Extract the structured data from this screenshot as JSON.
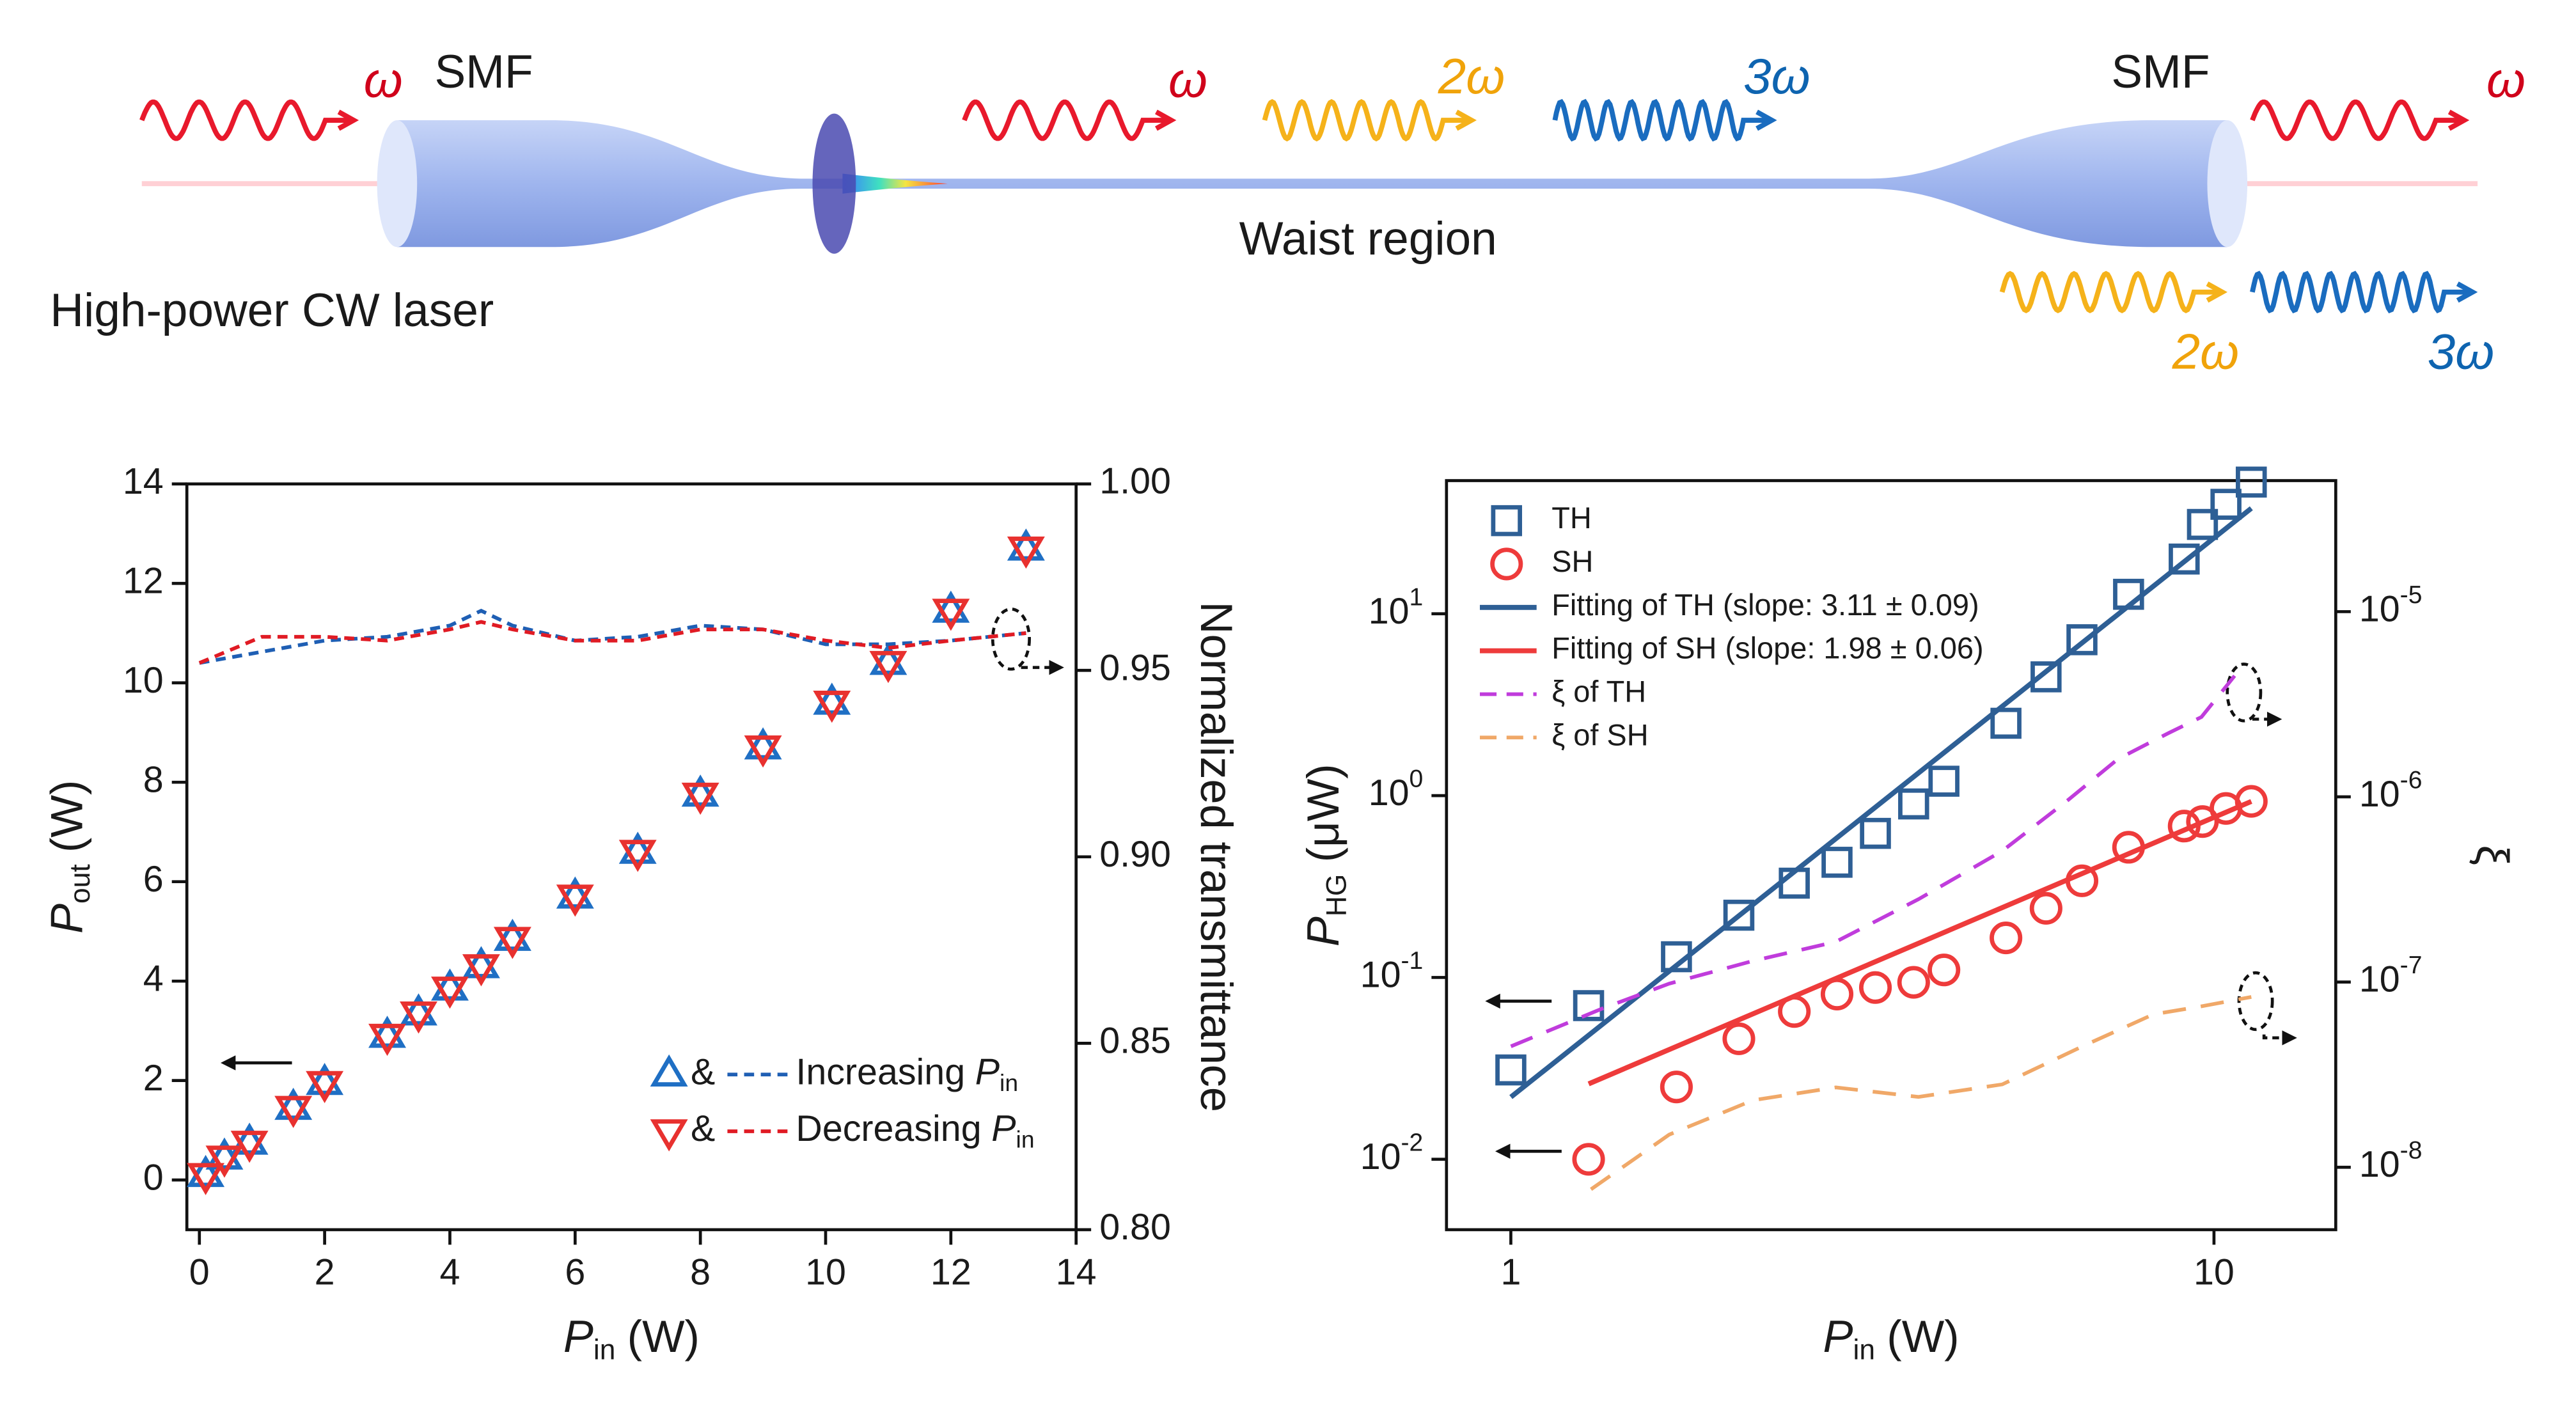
{
  "diagram": {
    "source": "High-power CW laser",
    "left_fiber": "SMF",
    "right_fiber": "SMF",
    "waist": "Waist region",
    "input_wave": "ω",
    "waist_waves": [
      "ω",
      "2ω",
      "3ω"
    ],
    "output_waves": [
      "ω",
      "2ω",
      "3ω"
    ]
  },
  "chart_data": [
    {
      "type": "scatter",
      "xlabel": {
        "symbol": "P",
        "subscript": "in",
        "unit": "(W)"
      },
      "ylabel": {
        "symbol": "P",
        "subscript": "out",
        "unit": "(W)"
      },
      "y2label": "Normalized transmittance",
      "xlim": [
        -0.2,
        14
      ],
      "xticks": [
        0,
        2,
        4,
        6,
        8,
        10,
        12,
        14
      ],
      "ylim": [
        -1,
        14
      ],
      "yticks": [
        0,
        2,
        4,
        6,
        8,
        10,
        12,
        14
      ],
      "y2lim": [
        0.8,
        1.0
      ],
      "y2ticks": [
        {
          "value": 0.8,
          "label": "0.80"
        },
        0.85,
        {
          "value": 0.9,
          "label": "0.90"
        },
        0.95,
        {
          "value": 1.0,
          "label": "1.00"
        }
      ],
      "series": [
        {
          "name": "&",
          "color": "#1f6fc4",
          "marker": "triangle-up",
          "axis": "y",
          "x": [
            0.1,
            0.4,
            0.8,
            1.5,
            2,
            3,
            3.5,
            4,
            4.5,
            5,
            6,
            7,
            8,
            9,
            10.1,
            11,
            12,
            13.2
          ],
          "values": [
            0.1,
            0.45,
            0.75,
            1.45,
            1.95,
            2.9,
            3.35,
            3.85,
            4.3,
            4.85,
            5.7,
            6.6,
            7.75,
            8.7,
            9.6,
            10.4,
            11.45,
            12.7
          ]
        },
        {
          "name": "&",
          "color": "#e8312f",
          "marker": "triangle-down",
          "axis": "y",
          "x": [
            0.1,
            0.4,
            0.8,
            1.5,
            2,
            3,
            3.5,
            4,
            4.5,
            5,
            6,
            7,
            8,
            9,
            10.1,
            11,
            12,
            13.2
          ],
          "values": [
            0.1,
            0.45,
            0.75,
            1.45,
            1.95,
            2.9,
            3.35,
            3.85,
            4.3,
            4.85,
            5.7,
            6.6,
            7.75,
            8.7,
            9.6,
            10.4,
            11.45,
            12.7
          ]
        },
        {
          "name": "Increasing",
          "name_symbol": "P",
          "name_subscript": "in",
          "color": "#1f5fb4",
          "line": "dashed",
          "axis": "y2",
          "x": [
            0,
            1,
            2,
            3,
            4,
            4.5,
            5,
            6,
            7,
            8,
            9,
            10,
            11,
            12,
            13.2
          ],
          "values": [
            0.952,
            0.955,
            0.958,
            0.959,
            0.962,
            0.966,
            0.962,
            0.958,
            0.959,
            0.962,
            0.961,
            0.957,
            0.957,
            0.958,
            0.96
          ]
        },
        {
          "name": "Decreasing",
          "name_symbol": "P",
          "name_subscript": "in",
          "color": "#e01b24",
          "line": "dashed",
          "axis": "y2",
          "x": [
            0,
            1,
            2,
            3,
            4,
            4.5,
            5,
            6,
            7,
            8,
            9,
            10,
            11,
            12,
            13.2
          ],
          "values": [
            0.952,
            0.959,
            0.959,
            0.958,
            0.961,
            0.963,
            0.961,
            0.958,
            0.958,
            0.961,
            0.961,
            0.958,
            0.956,
            0.958,
            0.96
          ]
        }
      ]
    },
    {
      "type": "scatter",
      "xlog": true,
      "ylog": true,
      "y2log": true,
      "xlabel": {
        "symbol": "P",
        "subscript": "in",
        "unit": "(W)"
      },
      "ylabel": {
        "symbol": "P",
        "subscript": "HG",
        "unit": "(μW)"
      },
      "y2label": "ξ",
      "xlim": [
        0.81,
        14.9
      ],
      "xticks": [
        1,
        10
      ],
      "ylim": [
        0.0041,
        54
      ],
      "yticks": [
        {
          "value": 0.01,
          "label": "10",
          "exponent": "-2"
        },
        {
          "value": 0.1,
          "label": "10",
          "exponent": "-1"
        },
        {
          "value": 1,
          "label": "10",
          "exponent": "0"
        },
        {
          "value": 10,
          "label": "10",
          "exponent": "1"
        }
      ],
      "y2lim": [
        4.6e-09,
        5.1e-05
      ],
      "y2ticks": [
        {
          "value": 1e-08,
          "label": "10",
          "exponent": "-8"
        },
        {
          "value": 1e-07,
          "label": "10",
          "exponent": "-7"
        },
        {
          "value": 1e-06,
          "label": "10",
          "exponent": "-6"
        },
        {
          "value": 1e-05,
          "label": "10",
          "exponent": "-5"
        }
      ],
      "series": [
        {
          "name": "TH",
          "color": "#2e5f95",
          "marker": "square",
          "axis": "y",
          "x": [
            1.0,
            1.29,
            1.72,
            2.11,
            2.53,
            2.91,
            3.3,
            3.74,
            4.13,
            5.06,
            5.77,
            6.49,
            7.56,
            9.07,
            9.63,
            10.4,
            11.3
          ],
          "values": [
            0.031,
            0.07,
            0.13,
            0.22,
            0.33,
            0.43,
            0.62,
            0.9,
            1.2,
            2.5,
            4.5,
            7.2,
            12.8,
            20,
            31,
            40,
            53
          ]
        },
        {
          "name": "SH",
          "color": "#ee3b3b",
          "marker": "circle",
          "axis": "y",
          "x": [
            1.29,
            1.72,
            2.11,
            2.53,
            2.91,
            3.3,
            3.74,
            4.13,
            5.06,
            5.77,
            6.49,
            7.56,
            9.07,
            9.63,
            10.4,
            11.3
          ],
          "values": [
            0.01,
            0.025,
            0.046,
            0.065,
            0.081,
            0.088,
            0.094,
            0.11,
            0.165,
            0.24,
            0.34,
            0.52,
            0.68,
            0.72,
            0.85,
            0.93
          ]
        },
        {
          "name": "Fitting of TH (slope: 3.11 ± 0.09)",
          "color": "#2e5f95",
          "line": "solid",
          "axis": "y",
          "x": [
            1.0,
            11.3
          ],
          "values": [
            0.022,
            38
          ]
        },
        {
          "name": "Fitting of SH (slope: 1.98 ± 0.06)",
          "color": "#ee3b3b",
          "line": "solid",
          "axis": "y",
          "x": [
            1.29,
            11.3
          ],
          "values": [
            0.026,
            0.93
          ]
        },
        {
          "name": "ξ of TH",
          "color": "#c03cdc",
          "line": "dashed",
          "axis": "y2",
          "x": [
            1.0,
            1.35,
            1.68,
            2.21,
            2.9,
            3.8,
            5.0,
            6.2,
            7.3,
            8.6,
            9.6,
            10.7
          ],
          "values": [
            4.5e-08,
            7.2e-08,
            9.8e-08,
            1.3e-07,
            1.65e-07,
            2.8e-07,
            5.1e-07,
            9.6e-07,
            1.6e-06,
            2.2e-06,
            2.7e-06,
            4.5e-06
          ]
        },
        {
          "name": "ξ of SH",
          "color": "#f0a868",
          "line": "dashed",
          "axis": "y2",
          "x": [
            1.3,
            1.68,
            2.21,
            2.9,
            3.8,
            5.0,
            6.5,
            8.2,
            9.6,
            11.3
          ],
          "values": [
            7.6e-09,
            1.5e-08,
            2.3e-08,
            2.7e-08,
            2.4e-08,
            2.8e-08,
            4.5e-08,
            6.7e-08,
            7.4e-08,
            8.3e-08
          ]
        }
      ]
    }
  ]
}
